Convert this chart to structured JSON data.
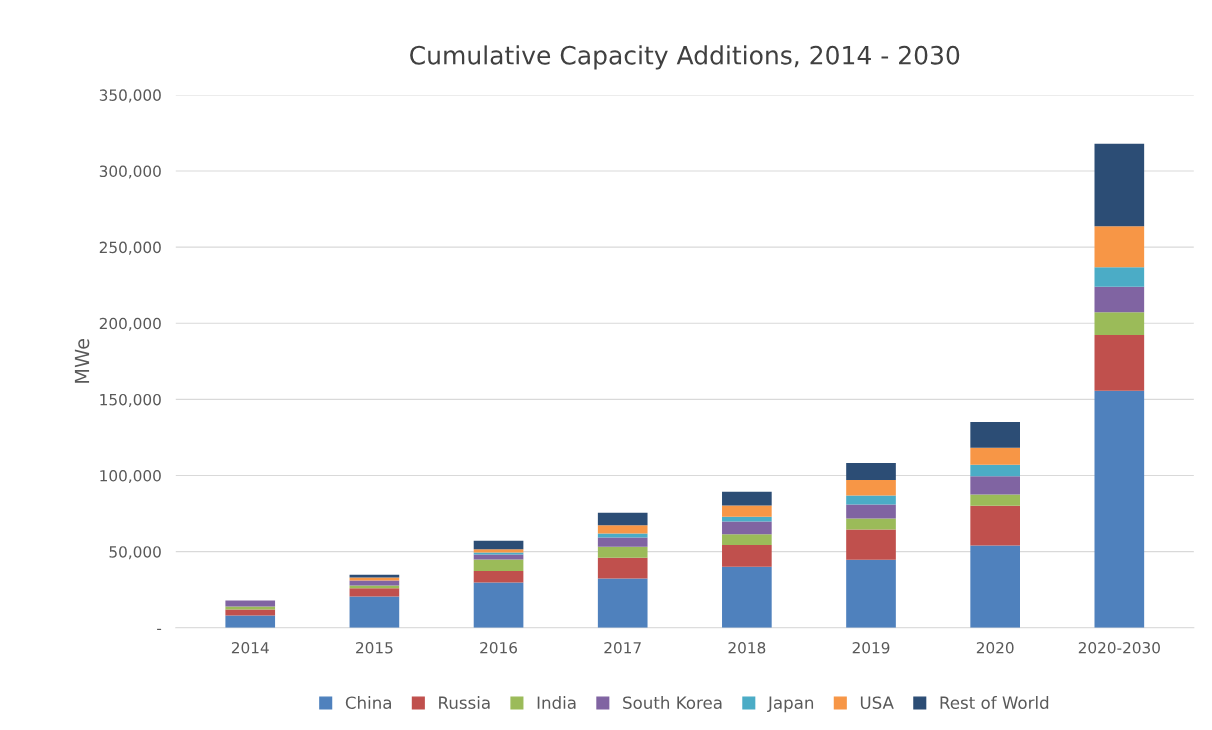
{
  "chart_data": {
    "type": "bar",
    "stacked": true,
    "title": "Cumulative Capacity Additions, 2014 - 2030",
    "ylabel": "MWe",
    "categories": [
      "2014",
      "2015",
      "2016",
      "2017",
      "2018",
      "2019",
      "2020",
      "2020-2030"
    ],
    "series": [
      {
        "name": "China",
        "color": "#4f81bd",
        "values": [
          8000,
          20600,
          29800,
          32400,
          40100,
          44700,
          54100,
          155700
        ]
      },
      {
        "name": "Russia",
        "color": "#c0504d",
        "values": [
          4000,
          5300,
          7500,
          13600,
          14200,
          19900,
          26100,
          36600
        ]
      },
      {
        "name": "India",
        "color": "#9bbb59",
        "values": [
          2000,
          1800,
          7500,
          7200,
          7200,
          7200,
          7400,
          14900
        ]
      },
      {
        "name": "South Korea",
        "color": "#8064a2",
        "values": [
          4000,
          3300,
          3300,
          6100,
          8300,
          9200,
          12000,
          16800
        ]
      },
      {
        "name": "Japan",
        "color": "#4bacc6",
        "values": [
          0,
          0,
          1300,
          2600,
          3100,
          5900,
          7500,
          12800
        ]
      },
      {
        "name": "USA",
        "color": "#f79646",
        "values": [
          0,
          2000,
          2200,
          5500,
          7400,
          10100,
          11200,
          27000
        ]
      },
      {
        "name": "Rest of World",
        "color": "#2c4d75",
        "values": [
          0,
          1800,
          5500,
          8200,
          9000,
          11200,
          16800,
          54100
        ]
      }
    ],
    "ylim": [
      0,
      350000
    ],
    "yticks": [
      {
        "value": 0,
        "label": "-"
      },
      {
        "value": 50000,
        "label": "50,000"
      },
      {
        "value": 100000,
        "label": "100,000"
      },
      {
        "value": 150000,
        "label": "150,000"
      },
      {
        "value": 200000,
        "label": "200,000"
      },
      {
        "value": 250000,
        "label": "250,000"
      },
      {
        "value": 300000,
        "label": "300,000"
      },
      {
        "value": 350000,
        "label": "350,000"
      }
    ],
    "grid": "y",
    "legend": "bottom"
  }
}
